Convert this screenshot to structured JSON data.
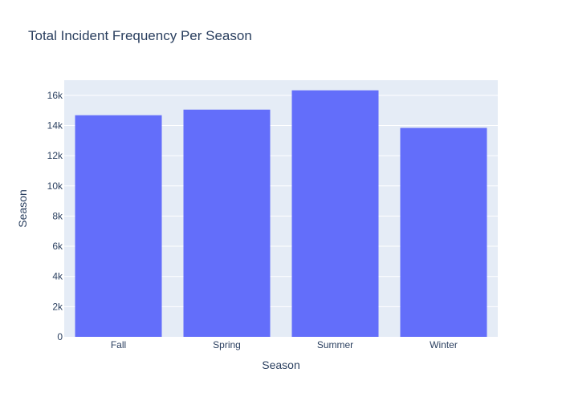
{
  "chart_data": {
    "type": "bar",
    "title": "Total Incident Frequency Per Season",
    "xlabel": "Season",
    "ylabel": "Season",
    "categories": [
      "Fall",
      "Spring",
      "Summer",
      "Winter"
    ],
    "values": [
      14680,
      15050,
      16330,
      13840
    ],
    "ylim": [
      0,
      17000
    ],
    "yticks": [
      0,
      2000,
      4000,
      6000,
      8000,
      10000,
      12000,
      14000,
      16000
    ],
    "ytick_labels": [
      "0",
      "2k",
      "4k",
      "6k",
      "8k",
      "10k",
      "12k",
      "14k",
      "16k"
    ],
    "grid": true,
    "colors": {
      "bar": "#636efa",
      "plot_background": "#e5ecf6",
      "text": "#2a3f5f",
      "gridline": "#ffffff"
    }
  }
}
